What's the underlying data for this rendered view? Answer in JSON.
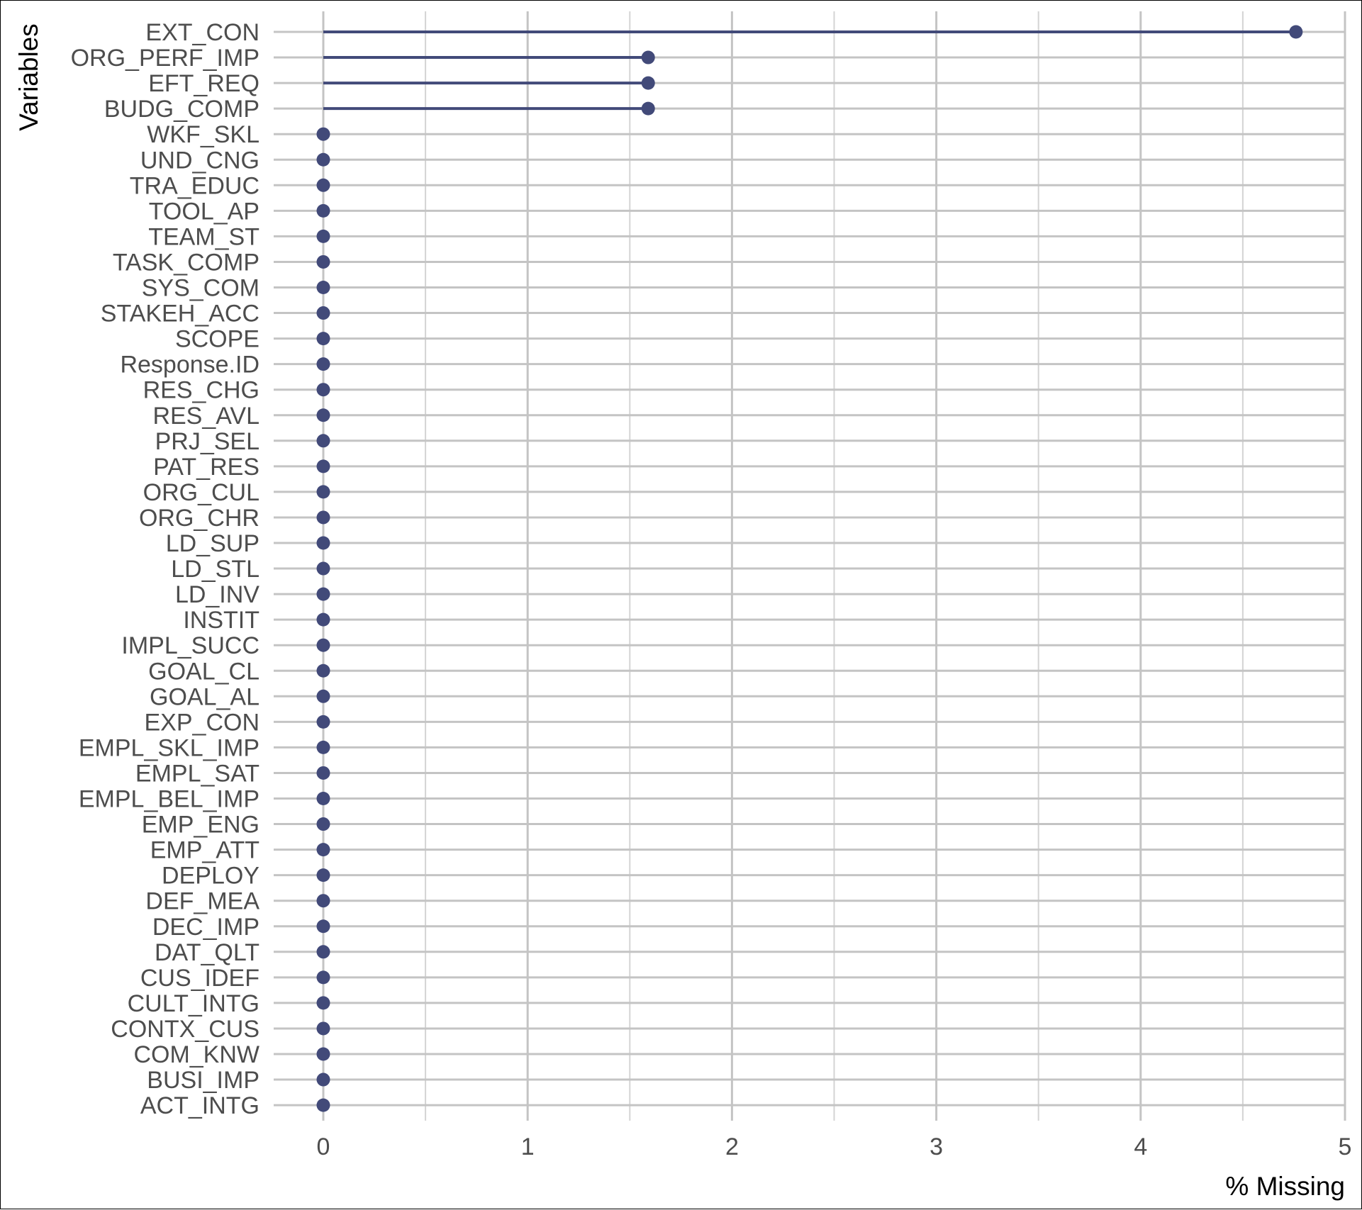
{
  "chart_data": {
    "type": "lollipop",
    "title": "",
    "xlabel": "% Missing",
    "ylabel": "Variables",
    "xlim": [
      0,
      5
    ],
    "x_ticks": [
      0,
      1,
      2,
      3,
      4,
      5
    ],
    "grid": true,
    "colors": {
      "point": "#424a79",
      "segment": "#424a79"
    },
    "categories": [
      "EXT_CON",
      "ORG_PERF_IMP",
      "EFT_REQ",
      "BUDG_COMP",
      "WKF_SKL",
      "UND_CNG",
      "TRA_EDUC",
      "TOOL_AP",
      "TEAM_ST",
      "TASK_COMP",
      "SYS_COM",
      "STAKEH_ACC",
      "SCOPE",
      "Response.ID",
      "RES_CHG",
      "RES_AVL",
      "PRJ_SEL",
      "PAT_RES",
      "ORG_CUL",
      "ORG_CHR",
      "LD_SUP",
      "LD_STL",
      "LD_INV",
      "INSTIT",
      "IMPL_SUCC",
      "GOAL_CL",
      "GOAL_AL",
      "EXP_CON",
      "EMPL_SKL_IMP",
      "EMPL_SAT",
      "EMPL_BEL_IMP",
      "EMP_ENG",
      "EMP_ATT",
      "DEPLOY",
      "DEF_MEA",
      "DEC_IMP",
      "DAT_QLT",
      "CUS_IDEF",
      "CULT_INTG",
      "CONTX_CUS",
      "COM_KNW",
      "BUSI_IMP",
      "ACT_INTG"
    ],
    "values": [
      4.76,
      1.59,
      1.59,
      1.59,
      0,
      0,
      0,
      0,
      0,
      0,
      0,
      0,
      0,
      0,
      0,
      0,
      0,
      0,
      0,
      0,
      0,
      0,
      0,
      0,
      0,
      0,
      0,
      0,
      0,
      0,
      0,
      0,
      0,
      0,
      0,
      0,
      0,
      0,
      0,
      0,
      0,
      0,
      0
    ]
  }
}
